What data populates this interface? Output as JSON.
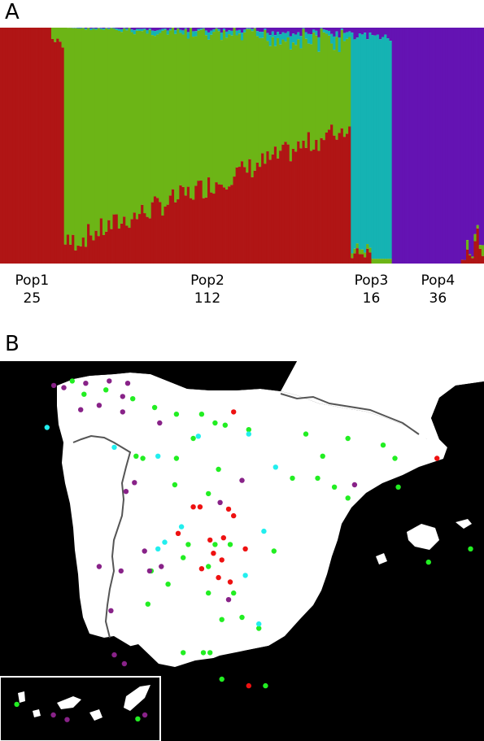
{
  "panel_a": {
    "label": "A"
  },
  "panel_b": {
    "label": "B"
  },
  "chart_data": {
    "type": "bar",
    "stacked": true,
    "title": "",
    "xlabel": "",
    "ylabel": "",
    "ylim": [
      0,
      1
    ],
    "legend": "none",
    "colors": {
      "Pop1": "#b01515",
      "Pop2": "#6cb516",
      "Pop3": "#15b3b3",
      "Pop4": "#6413b3"
    },
    "populations": [
      {
        "name": "Pop1",
        "count": "25"
      },
      {
        "name": "Pop2",
        "count": "112"
      },
      {
        "name": "Pop3",
        "count": "16"
      },
      {
        "name": "Pop4",
        "count": "36"
      }
    ],
    "segments": [
      {
        "name": "Pop1",
        "individuals": 25,
        "pattern": "pop1"
      },
      {
        "name": "Pop2",
        "individuals": 112,
        "pattern": "pop2"
      },
      {
        "name": "Pop3",
        "individuals": 16,
        "pattern": "pop3"
      },
      {
        "name": "Pop4",
        "individuals": 36,
        "pattern": "pop4"
      }
    ]
  },
  "map_data": {
    "colors": {
      "Pop1": "#ee1111",
      "Pop2": "#22ee22",
      "Pop3": "#22eeee",
      "Pop4": "#882288"
    },
    "sites": [
      {
        "pop": "Pop1",
        "lon": -4.05,
        "lat": 40.9
      },
      {
        "pop": "Pop1",
        "lon": -3.85,
        "lat": 40.9
      },
      {
        "pop": "Pop1",
        "lon": -3.0,
        "lat": 40.85
      },
      {
        "pop": "Pop1",
        "lon": -2.85,
        "lat": 40.7
      },
      {
        "pop": "Pop1",
        "lon": -4.5,
        "lat": 40.3
      },
      {
        "pop": "Pop1",
        "lon": -3.55,
        "lat": 40.15
      },
      {
        "pop": "Pop1",
        "lon": -3.15,
        "lat": 40.2
      },
      {
        "pop": "Pop1",
        "lon": -3.45,
        "lat": 39.85
      },
      {
        "pop": "Pop1",
        "lon": -3.2,
        "lat": 39.7
      },
      {
        "pop": "Pop1",
        "lon": -2.5,
        "lat": 39.95
      },
      {
        "pop": "Pop1",
        "lon": -3.8,
        "lat": 39.5
      },
      {
        "pop": "Pop1",
        "lon": -3.3,
        "lat": 39.3
      },
      {
        "pop": "Pop1",
        "lon": -2.95,
        "lat": 39.2
      },
      {
        "pop": "Pop1",
        "lon": -2.85,
        "lat": 43.05
      },
      {
        "pop": "Pop1",
        "lon": 3.2,
        "lat": 42.0
      },
      {
        "pop": "Pop1",
        "lon": -2.4,
        "lat": 36.85
      },
      {
        "pop": "Pop2",
        "lon": -7.65,
        "lat": 43.75
      },
      {
        "pop": "Pop2",
        "lon": -7.3,
        "lat": 43.45
      },
      {
        "pop": "Pop2",
        "lon": -6.65,
        "lat": 43.55
      },
      {
        "pop": "Pop2",
        "lon": -5.85,
        "lat": 43.35
      },
      {
        "pop": "Pop2",
        "lon": -5.2,
        "lat": 43.15
      },
      {
        "pop": "Pop2",
        "lon": -4.55,
        "lat": 43.0
      },
      {
        "pop": "Pop2",
        "lon": -3.8,
        "lat": 43.0
      },
      {
        "pop": "Pop2",
        "lon": -3.4,
        "lat": 42.8
      },
      {
        "pop": "Pop2",
        "lon": -3.1,
        "lat": 42.75
      },
      {
        "pop": "Pop2",
        "lon": -2.4,
        "lat": 42.65
      },
      {
        "pop": "Pop2",
        "lon": -4.05,
        "lat": 42.45
      },
      {
        "pop": "Pop2",
        "lon": -5.75,
        "lat": 42.05
      },
      {
        "pop": "Pop2",
        "lon": -5.55,
        "lat": 42.0
      },
      {
        "pop": "Pop2",
        "lon": -4.55,
        "lat": 42.0
      },
      {
        "pop": "Pop2",
        "lon": -3.3,
        "lat": 41.75
      },
      {
        "pop": "Pop2",
        "lon": -4.6,
        "lat": 41.4
      },
      {
        "pop": "Pop2",
        "lon": -3.6,
        "lat": 41.2
      },
      {
        "pop": "Pop2",
        "lon": -0.7,
        "lat": 42.55
      },
      {
        "pop": "Pop2",
        "lon": -0.2,
        "lat": 42.05
      },
      {
        "pop": "Pop2",
        "lon": 0.55,
        "lat": 42.45
      },
      {
        "pop": "Pop2",
        "lon": 1.6,
        "lat": 42.3
      },
      {
        "pop": "Pop2",
        "lon": 1.95,
        "lat": 42.0
      },
      {
        "pop": "Pop2",
        "lon": -1.1,
        "lat": 41.55
      },
      {
        "pop": "Pop2",
        "lon": -0.35,
        "lat": 41.55
      },
      {
        "pop": "Pop2",
        "lon": 0.15,
        "lat": 41.35
      },
      {
        "pop": "Pop2",
        "lon": 0.55,
        "lat": 41.1
      },
      {
        "pop": "Pop2",
        "lon": 2.05,
        "lat": 41.35
      },
      {
        "pop": "Pop2",
        "lon": -4.2,
        "lat": 40.05
      },
      {
        "pop": "Pop2",
        "lon": -3.4,
        "lat": 40.05
      },
      {
        "pop": "Pop2",
        "lon": -2.95,
        "lat": 40.05
      },
      {
        "pop": "Pop2",
        "lon": -3.6,
        "lat": 39.55
      },
      {
        "pop": "Pop2",
        "lon": -4.35,
        "lat": 39.75
      },
      {
        "pop": "Pop2",
        "lon": -5.3,
        "lat": 39.45
      },
      {
        "pop": "Pop2",
        "lon": -4.8,
        "lat": 39.15
      },
      {
        "pop": "Pop2",
        "lon": -5.4,
        "lat": 38.7
      },
      {
        "pop": "Pop2",
        "lon": -3.6,
        "lat": 38.95
      },
      {
        "pop": "Pop2",
        "lon": -2.85,
        "lat": 38.95
      },
      {
        "pop": "Pop2",
        "lon": -3.2,
        "lat": 38.35
      },
      {
        "pop": "Pop2",
        "lon": -2.6,
        "lat": 38.4
      },
      {
        "pop": "Pop2",
        "lon": -1.65,
        "lat": 39.9
      },
      {
        "pop": "Pop2",
        "lon": -2.1,
        "lat": 38.15
      },
      {
        "pop": "Pop2",
        "lon": -4.35,
        "lat": 37.6
      },
      {
        "pop": "Pop2",
        "lon": -3.75,
        "lat": 37.6
      },
      {
        "pop": "Pop2",
        "lon": -3.55,
        "lat": 37.6
      },
      {
        "pop": "Pop2",
        "lon": -3.2,
        "lat": 37.0
      },
      {
        "pop": "Pop2",
        "lon": -1.9,
        "lat": 36.85
      },
      {
        "pop": "Pop2",
        "lon": -5.7,
        "lat": 36.1
      },
      {
        "pop": "Pop2",
        "lon": 2.95,
        "lat": 39.65
      },
      {
        "pop": "Pop2",
        "lon": 4.2,
        "lat": 39.95
      },
      {
        "pop": "Pop3",
        "lon": -8.4,
        "lat": 42.7
      },
      {
        "pop": "Pop3",
        "lon": -6.4,
        "lat": 42.25
      },
      {
        "pop": "Pop3",
        "lon": -3.9,
        "lat": 42.5
      },
      {
        "pop": "Pop3",
        "lon": -2.4,
        "lat": 42.55
      },
      {
        "pop": "Pop3",
        "lon": -5.1,
        "lat": 42.05
      },
      {
        "pop": "Pop3",
        "lon": -1.6,
        "lat": 41.8
      },
      {
        "pop": "Pop3",
        "lon": -4.4,
        "lat": 40.45
      },
      {
        "pop": "Pop3",
        "lon": -4.9,
        "lat": 40.1
      },
      {
        "pop": "Pop3",
        "lon": -5.1,
        "lat": 39.95
      },
      {
        "pop": "Pop3",
        "lon": -1.95,
        "lat": 40.35
      },
      {
        "pop": "Pop3",
        "lon": -2.5,
        "lat": 39.35
      },
      {
        "pop": "Pop3",
        "lon": -2.1,
        "lat": 38.25
      },
      {
        "pop": "Pop4",
        "lon": -8.2,
        "lat": 43.65
      },
      {
        "pop": "Pop4",
        "lon": -7.9,
        "lat": 43.6
      },
      {
        "pop": "Pop4",
        "lon": -7.25,
        "lat": 43.7
      },
      {
        "pop": "Pop4",
        "lon": -6.55,
        "lat": 43.75
      },
      {
        "pop": "Pop4",
        "lon": -6.0,
        "lat": 43.7
      },
      {
        "pop": "Pop4",
        "lon": -6.15,
        "lat": 43.4
      },
      {
        "pop": "Pop4",
        "lon": -7.4,
        "lat": 43.1
      },
      {
        "pop": "Pop4",
        "lon": -6.85,
        "lat": 43.2
      },
      {
        "pop": "Pop4",
        "lon": -6.15,
        "lat": 43.05
      },
      {
        "pop": "Pop4",
        "lon": -5.05,
        "lat": 42.8
      },
      {
        "pop": "Pop4",
        "lon": -5.8,
        "lat": 41.45
      },
      {
        "pop": "Pop4",
        "lon": -6.05,
        "lat": 41.25
      },
      {
        "pop": "Pop4",
        "lon": -5.5,
        "lat": 39.9
      },
      {
        "pop": "Pop4",
        "lon": -5.0,
        "lat": 39.55
      },
      {
        "pop": "Pop4",
        "lon": -5.35,
        "lat": 39.45
      },
      {
        "pop": "Pop4",
        "lon": -6.85,
        "lat": 39.55
      },
      {
        "pop": "Pop4",
        "lon": -6.2,
        "lat": 39.45
      },
      {
        "pop": "Pop4",
        "lon": -6.5,
        "lat": 38.55
      },
      {
        "pop": "Pop4",
        "lon": -6.4,
        "lat": 37.55
      },
      {
        "pop": "Pop4",
        "lon": -6.1,
        "lat": 37.35
      },
      {
        "pop": "Pop4",
        "lon": -3.0,
        "lat": 38.8
      },
      {
        "pop": "Pop4",
        "lon": -3.25,
        "lat": 41.0
      },
      {
        "pop": "Pop4",
        "lon": -2.6,
        "lat": 41.5
      },
      {
        "pop": "Pop4",
        "lon": 0.75,
        "lat": 41.4
      }
    ],
    "canary_sites": [
      {
        "pop": "Pop2",
        "lon": -17.85,
        "lat": 28.7
      },
      {
        "pop": "Pop4",
        "lon": -16.65,
        "lat": 28.35
      },
      {
        "pop": "Pop4",
        "lon": -16.2,
        "lat": 28.2
      },
      {
        "pop": "Pop4",
        "lon": -13.65,
        "lat": 28.35
      }
    ]
  }
}
